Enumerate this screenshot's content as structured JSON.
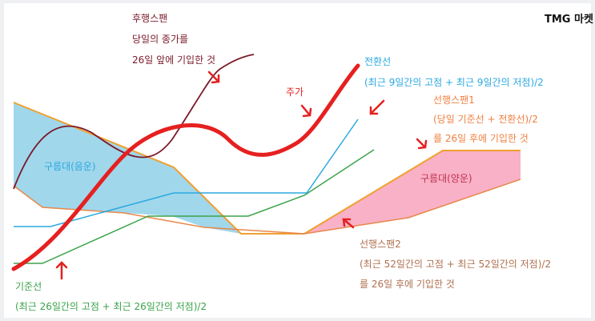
{
  "brand": "TMG 마켓",
  "labels": {
    "lagging_title": "후행스팬",
    "lagging_desc1": "당일의 종가를",
    "lagging_desc2": "26일 앞에 기입한 것",
    "price": "주가",
    "conversion_title": "전환선",
    "conversion_desc": "(최근 9일간의 고점 + 최근 9일간의 저점)/2",
    "leading1_title": "선행스팬1",
    "leading1_desc1": "(당일 기준선 + 전환선)/2",
    "leading1_desc2": "를 26일 후에 기입한 것",
    "cloud_negative": "구름대(음운)",
    "cloud_positive": "구름대(양운)",
    "leading2_title": "선행스팬2",
    "leading2_desc1": "(최근 52일간의 고점 + 최근 52일간의 저점)/2",
    "leading2_desc2": "를 26일 후에 기입한 것",
    "base_title": "기준선",
    "base_desc": "(최근 26일간의 고점 + 최근 26일간의 저점)/2"
  },
  "colors": {
    "lagging": "#7a1a2a",
    "price": "#e62020",
    "conversion": "#2aa8e0",
    "leading1": "#f0a030",
    "leading2": "#e8884a",
    "base": "#3aa34a",
    "cloud_negative": "#8fd0e8",
    "cloud_positive": "#f7a8c0",
    "arrow": "#e62020",
    "text_lagging": "#7a1a2a",
    "text_conversion": "#2aa8e0",
    "text_leading1": "#f08040",
    "text_leading2": "#b07050",
    "text_base": "#3aa34a"
  }
}
